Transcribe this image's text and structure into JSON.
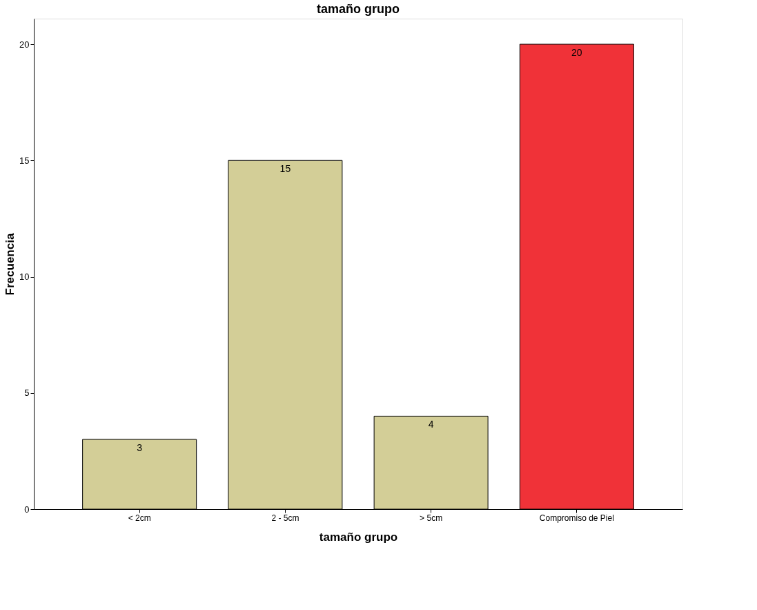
{
  "chart_data": {
    "type": "bar",
    "title": "tamaño grupo",
    "xlabel": "tamaño grupo",
    "ylabel": "Frecuencia",
    "categories": [
      "< 2cm",
      "2 - 5cm",
      "> 5cm",
      "Compromiso de Piel"
    ],
    "values": [
      3,
      15,
      4,
      20
    ],
    "colors": [
      "#d3ce97",
      "#d3ce97",
      "#d3ce97",
      "#f03238"
    ],
    "ylim": [
      0,
      21.1
    ],
    "yticks": [
      0,
      5,
      10,
      15,
      20
    ],
    "grid": false,
    "data_labels": true
  }
}
